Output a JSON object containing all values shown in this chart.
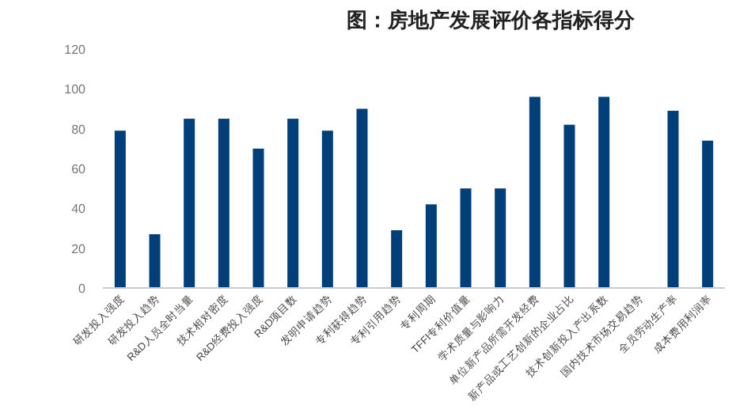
{
  "chart_data": {
    "type": "bar",
    "title": "图：房地产发展评价各指标得分",
    "categories": [
      "研发投入强度",
      "研发投入趋势",
      "R&D人员全时当量",
      "技术相对密度",
      "R&D经费投入强度",
      "R&D项目数",
      "发明申请趋势",
      "专利获得趋势",
      "专利引用趋势",
      "专利周期",
      "TFFI专利价值量",
      "学术质量与影响力",
      "单位新产品所需开发经费",
      "新产品或工艺创新的企业占比",
      "技术创新投入产出系数",
      "国内技术市场交易趋势",
      "全员劳动生产率",
      "成本费用利润率"
    ],
    "values": [
      79,
      27,
      85,
      85,
      70,
      85,
      79,
      90,
      29,
      42,
      50,
      50,
      96,
      82,
      96,
      null,
      89,
      74
    ],
    "color": "#003f7a",
    "ylim": [
      0,
      120
    ],
    "yticks": [
      0,
      20,
      40,
      60,
      80,
      100,
      120
    ],
    "grid": false
  }
}
